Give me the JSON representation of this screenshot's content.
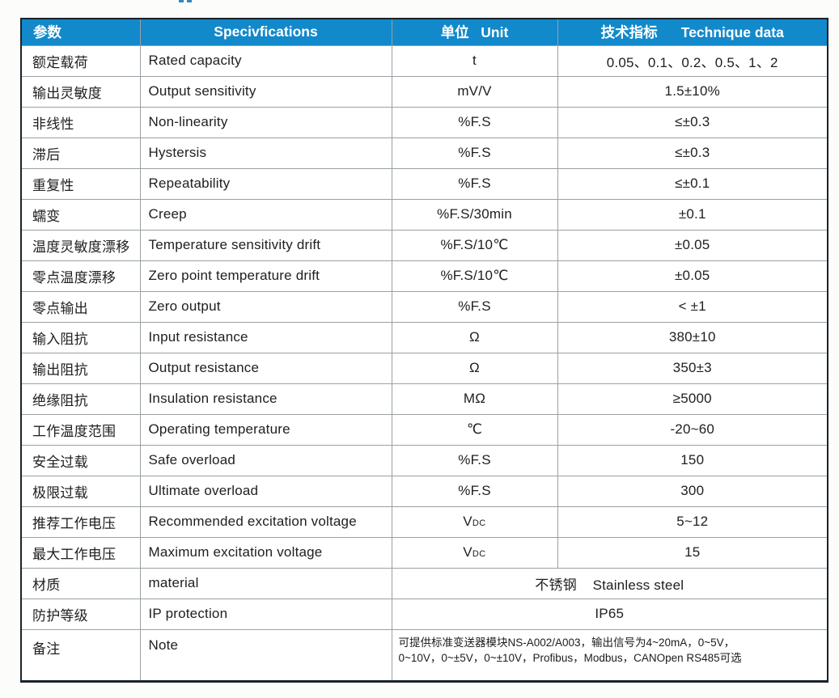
{
  "page": {
    "background": "#fcfcfb"
  },
  "colors": {
    "header_bg": "#1289cb",
    "header_text": "#ffffff",
    "grid_line": "#9aa0a4",
    "outer_border": "#18232c",
    "body_text": "#202020",
    "cropped_title_remnant": "#2e86c5"
  },
  "table": {
    "headers": {
      "param": "参数",
      "spec": "Specivfications",
      "unit": "单位   Unit",
      "technique": "技术指标      Technique data"
    },
    "rows": [
      {
        "cn": "额定载荷",
        "en": "Rated capacity",
        "unit": "t",
        "value": "0.05、0.1、0.2、0.5、1、2"
      },
      {
        "cn": "输出灵敏度",
        "en": "Output sensitivity",
        "unit": "mV/V",
        "value": "1.5±10%"
      },
      {
        "cn": "非线性",
        "en": "Non-linearity",
        "unit": "%F.S",
        "value": "≤±0.3"
      },
      {
        "cn": "滞后",
        "en": "Hystersis",
        "unit": "%F.S",
        "value": "≤±0.3"
      },
      {
        "cn": "重复性",
        "en": "Repeatability",
        "unit": "%F.S",
        "value": "≤±0.1"
      },
      {
        "cn": "蠕变",
        "en": "Creep",
        "unit": "%F.S/30min",
        "value": "±0.1"
      },
      {
        "cn": "温度灵敏度漂移",
        "en": "Temperature sensitivity drift",
        "unit": "%F.S/10℃",
        "value": "±0.05"
      },
      {
        "cn": "零点温度漂移",
        "en": "Zero point temperature drift",
        "unit": "%F.S/10℃",
        "value": "±0.05"
      },
      {
        "cn": "零点输出",
        "en": "Zero output",
        "unit": "%F.S",
        "value": "< ±1"
      },
      {
        "cn": "输入阻抗",
        "en": "Input resistance",
        "unit": "Ω",
        "value": "380±10"
      },
      {
        "cn": "输出阻抗",
        "en": "Output resistance",
        "unit": "Ω",
        "value": "350±3"
      },
      {
        "cn": "绝缘阻抗",
        "en": "Insulation resistance",
        "unit": "MΩ",
        "value": "≥5000"
      },
      {
        "cn": "工作温度范围",
        "en": "Operating temperature",
        "unit": "℃",
        "value": "-20~60"
      },
      {
        "cn": "安全过载",
        "en": "Safe overload",
        "unit": "%F.S",
        "value": "150"
      },
      {
        "cn": "极限过载",
        "en": "Ultimate overload",
        "unit": "%F.S",
        "value": "300"
      },
      {
        "cn": "推荐工作电压",
        "en": "Recommended excitation voltage",
        "unit": "V",
        "unit_sub": "DC",
        "value": "5~12"
      },
      {
        "cn": "最大工作电压",
        "en": "Maximum excitation voltage",
        "unit": "V",
        "unit_sub": "DC",
        "value": "15"
      }
    ],
    "material_row": {
      "cn": "材质",
      "en": "material",
      "value": "不锈钢    Stainless steel"
    },
    "ip_row": {
      "cn": "防护等级",
      "en": "IP protection",
      "value": "IP65"
    },
    "note_row": {
      "cn": "备注",
      "en": "Note",
      "lines": [
        "可提供标准变送器模块NS-A002/A003，输出信号为4~20mA，0~5V，",
        "0~10V，0~±5V，0~±10V，Profibus，Modbus，CANOpen RS485可选"
      ]
    }
  }
}
